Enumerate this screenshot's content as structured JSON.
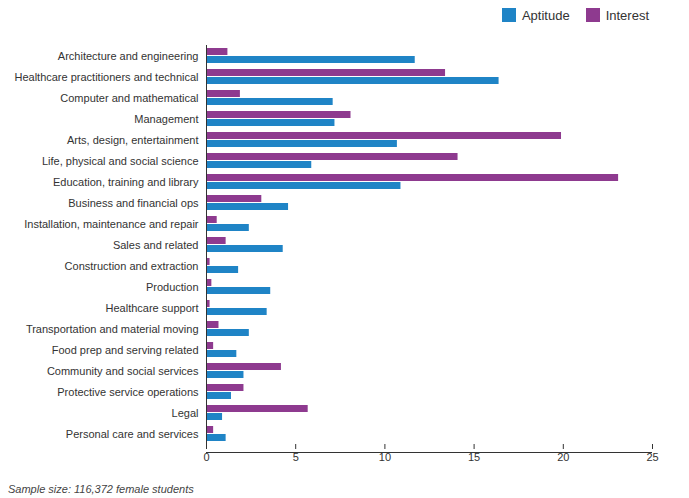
{
  "chart_data": {
    "type": "bar",
    "orientation": "horizontal",
    "legend": "top-right",
    "caption": "Sample size: 116,372 female students",
    "categories": [
      "Architecture and engineering",
      "Healthcare practitioners and technical",
      "Computer and mathematical",
      "Management",
      "Arts, design, entertainment",
      "Life, physical and social science",
      "Education, training and library",
      "Business and financial ops",
      "Installation, maintenance and repair",
      "Sales and related",
      "Construction and extraction",
      "Production",
      "Healthcare support",
      "Transportation and material moving",
      "Food prep and serving related",
      "Community and social services",
      "Protective service operations",
      "Legal",
      "Personal care and services"
    ],
    "series": [
      {
        "name": "Aptitude",
        "color": "#1f84c6",
        "values": [
          11.7,
          16.4,
          7.1,
          7.2,
          10.7,
          5.9,
          10.9,
          4.6,
          2.4,
          4.3,
          1.8,
          3.6,
          3.4,
          2.4,
          1.7,
          2.1,
          1.4,
          0.9,
          1.1
        ]
      },
      {
        "name": "Interest",
        "color": "#8e3a8f",
        "values": [
          1.2,
          13.4,
          1.9,
          8.1,
          19.9,
          14.1,
          23.1,
          3.1,
          0.6,
          1.1,
          0.2,
          0.3,
          0.2,
          0.7,
          0.4,
          4.2,
          2.1,
          5.7,
          0.4
        ]
      }
    ],
    "xlim": [
      0,
      25
    ],
    "xticks": [
      0,
      5,
      10,
      15,
      20,
      25
    ],
    "grid": false
  }
}
